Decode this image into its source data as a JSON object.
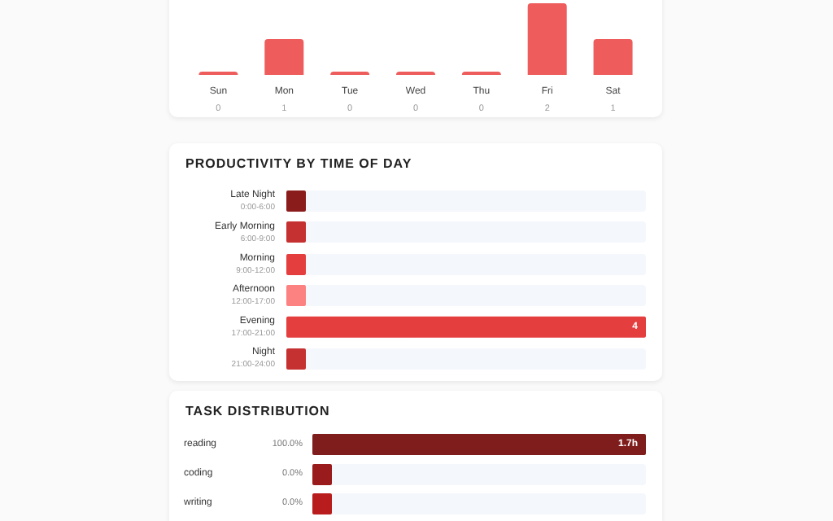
{
  "chart_data": [
    {
      "type": "bar",
      "categories": [
        "Sun",
        "Mon",
        "Tue",
        "Wed",
        "Thu",
        "Fri",
        "Sat"
      ],
      "values": [
        0,
        1,
        0,
        0,
        0,
        2,
        1
      ],
      "color": "#ee5c5c",
      "data_labels": true
    },
    {
      "type": "bar",
      "orientation": "horizontal",
      "title": "PRODUCTIVITY BY TIME OF DAY",
      "categories": [
        "Late Night\n0:00-6:00",
        "Early Morning\n6:00-9:00",
        "Morning\n9:00-12:00",
        "Afternoon\n12:00-17:00",
        "Evening\n17:00-21:00",
        "Night\n21:00-24:00"
      ],
      "values": [
        0,
        0,
        0,
        0,
        4,
        0
      ],
      "colors": [
        "#8b1c1c",
        "#c53030",
        "#e53e3e",
        "#fc8181",
        "#e53e3e",
        "#c53030"
      ],
      "value_labels": [
        null,
        null,
        null,
        null,
        "4",
        null
      ]
    },
    {
      "type": "bar",
      "orientation": "horizontal",
      "title": "TASK DISTRIBUTION",
      "categories": [
        "reading",
        "coding",
        "writing"
      ],
      "values": [
        1.7,
        0,
        0
      ],
      "colors": [
        "#7f1d1d",
        "#991b1b",
        "#b91c1c"
      ],
      "value_labels": [
        "1.7h",
        null,
        null
      ],
      "annotations": [
        "100.0%",
        "0.0%",
        "0.0%"
      ]
    }
  ]
}
